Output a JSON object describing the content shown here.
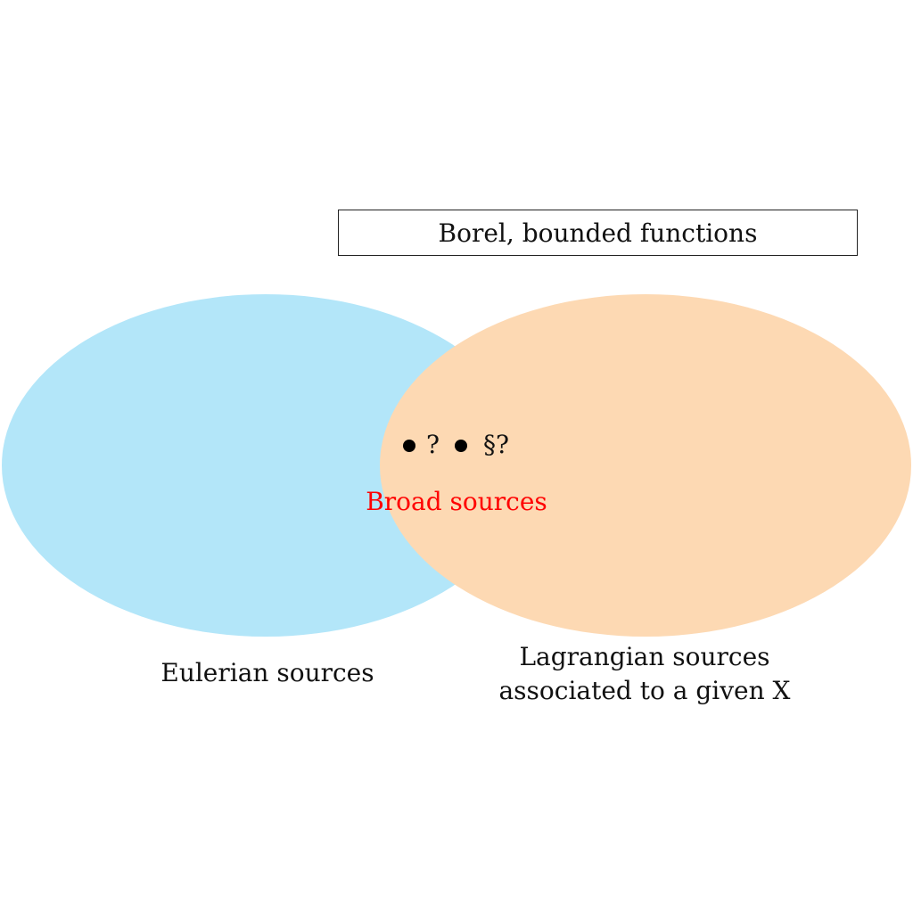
{
  "diagram": {
    "frame_label": "Borel, bounded functions",
    "sets": [
      {
        "name": "eulerian",
        "label": "Eulerian sources",
        "color": "#b3e6f9"
      },
      {
        "name": "lagrangian",
        "label_lines": [
          "Lagrangian sources",
          "associated to a given X"
        ],
        "color": "#fdd9b3"
      }
    ],
    "intersection": {
      "label": "Broad sources",
      "color": "#ff0000"
    },
    "points": [
      {
        "mark": "?"
      },
      {
        "mark": "§?"
      }
    ],
    "point_color": "#000000"
  }
}
